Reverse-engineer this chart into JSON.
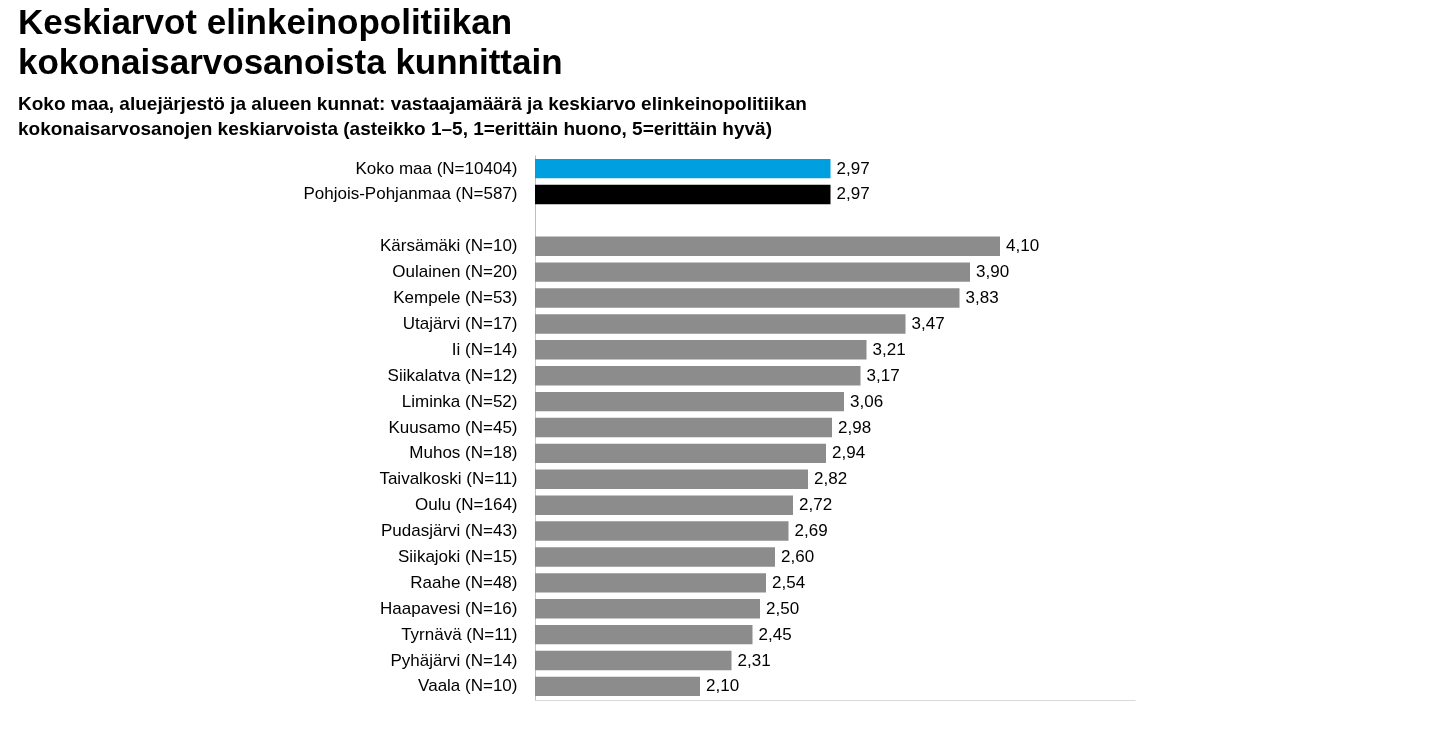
{
  "chart_data": {
    "type": "bar",
    "orientation": "horizontal",
    "title": "Keskiarvot elinkeinopolitiikan kokonaisarvosanoista kunnittain",
    "subtitle": "Koko maa, aluejärjestö ja alueen kunnat: vastaajamäärä ja keskiarvo elinkeinopolitiikan kokonaisarvosanojen keskiarvoista (asteikko 1–5,  1=erittäin huono, 5=erittäin hyvä)",
    "categories": [
      "Koko maa (N=10404)",
      "Pohjois-Pohjanmaa (N=587)",
      null,
      "Kärsämäki (N=10)",
      "Oulainen (N=20)",
      "Kempele (N=53)",
      "Utajärvi (N=17)",
      "Ii (N=14)",
      "Siikalatva (N=12)",
      "Liminka (N=52)",
      "Kuusamo (N=45)",
      "Muhos (N=18)",
      "Taivalkoski (N=11)",
      "Oulu (N=164)",
      "Pudasjärvi (N=43)",
      "Siikajoki (N=15)",
      "Raahe (N=48)",
      "Haapavesi (N=16)",
      "Tyrnävä (N=11)",
      "Pyhäjärvi (N=14)",
      "Vaala (N=10)"
    ],
    "values": [
      2.97,
      2.97,
      null,
      4.1,
      3.9,
      3.83,
      3.47,
      3.21,
      3.17,
      3.06,
      2.98,
      2.94,
      2.82,
      2.72,
      2.69,
      2.6,
      2.54,
      2.5,
      2.45,
      2.31,
      2.1
    ],
    "value_labels": [
      "2,97",
      "2,97",
      null,
      "4,10",
      "3,90",
      "3,83",
      "3,47",
      "3,21",
      "3,17",
      "3,06",
      "2,98",
      "2,94",
      "2,82",
      "2,72",
      "2,69",
      "2,60",
      "2,54",
      "2,50",
      "2,45",
      "2,31",
      "2,10"
    ],
    "colors": [
      "#009fdf",
      "#000000",
      null,
      "#8c8c8c",
      "#8c8c8c",
      "#8c8c8c",
      "#8c8c8c",
      "#8c8c8c",
      "#8c8c8c",
      "#8c8c8c",
      "#8c8c8c",
      "#8c8c8c",
      "#8c8c8c",
      "#8c8c8c",
      "#8c8c8c",
      "#8c8c8c",
      "#8c8c8c",
      "#8c8c8c",
      "#8c8c8c",
      "#8c8c8c",
      "#8c8c8c"
    ],
    "xlim": [
      1,
      5
    ],
    "tick_labels": "y"
  }
}
